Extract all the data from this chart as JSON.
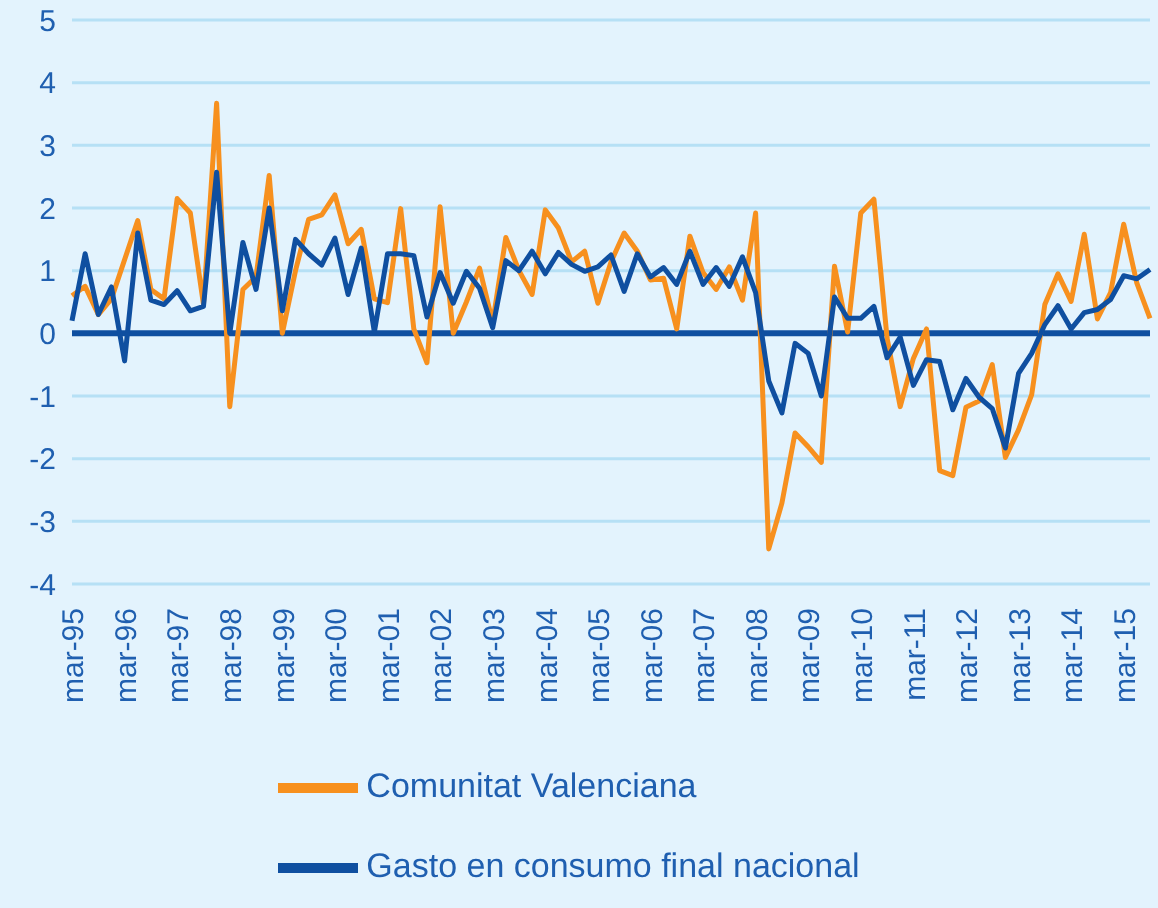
{
  "chart_data": {
    "type": "line",
    "categories": [
      "mar-95",
      null,
      null,
      null,
      "mar-96",
      null,
      null,
      null,
      "mar-97",
      null,
      null,
      null,
      "mar-98",
      null,
      null,
      null,
      "mar-99",
      null,
      null,
      null,
      "mar-00",
      null,
      null,
      null,
      "mar-01",
      null,
      null,
      null,
      "mar-02",
      null,
      null,
      null,
      "mar-03",
      null,
      null,
      null,
      "mar-04",
      null,
      null,
      null,
      "mar-05",
      null,
      null,
      null,
      "mar-06",
      null,
      null,
      null,
      "mar-07",
      null,
      null,
      null,
      "mar-08",
      null,
      null,
      null,
      "mar-09",
      null,
      null,
      null,
      "mar-10",
      null,
      null,
      null,
      "mar-11",
      null,
      null,
      null,
      "mar-12",
      null,
      null,
      null,
      "mar-13",
      null,
      null,
      null,
      "mar-14",
      null,
      null,
      null,
      "mar-15",
      null,
      null
    ],
    "series": [
      {
        "name": "Comunitat Valenciana",
        "color": "#f7901e",
        "values": [
          0.6,
          0.75,
          0.3,
          0.55,
          null,
          1.8,
          0.7,
          0.55,
          2.15,
          1.92,
          0.46,
          3.67,
          -1.17,
          0.7,
          0.9,
          2.52,
          0,
          1.0,
          1.82,
          1.89,
          2.21,
          1.43,
          1.66,
          0.55,
          0.49,
          1.99,
          0.07,
          -0.47,
          2.02,
          0,
          0.5,
          1.04,
          0.17,
          1.53,
          1.0,
          0.62,
          1.97,
          1.68,
          1.14,
          1.31,
          0.48,
          1.14,
          1.6,
          1.31,
          0.85,
          0.88,
          0.07,
          1.55,
          0.97,
          0.7,
          1.06,
          0.53,
          1.92,
          -3.44,
          -2.71,
          -1.59,
          -1.81,
          -2.06,
          1.07,
          0.02,
          1.92,
          2.14,
          -0.08,
          -1.17,
          -0.4,
          0.07,
          -2.19,
          -2.27,
          -1.18,
          -1.08,
          -0.5,
          -1.98,
          -1.54,
          -0.98,
          0.46,
          0.95,
          0.51,
          1.58,
          0.23,
          0.65,
          1.74,
          0.8,
          0.24
        ]
      },
      {
        "name": "Gasto en consumo final nacional",
        "color": "#0f4fa0",
        "values": [
          0.2,
          1.27,
          0.3,
          0.74,
          -0.44,
          1.6,
          0.53,
          0.46,
          0.68,
          0.36,
          0.43,
          2.57,
          0,
          1.45,
          0.7,
          2.0,
          0.36,
          1.5,
          1.27,
          1.09,
          1.52,
          0.62,
          1.36,
          0.02,
          1.27,
          1.27,
          1.24,
          0.26,
          0.97,
          0.48,
          0.99,
          0.72,
          0.09,
          1.16,
          1.0,
          1.31,
          0.95,
          1.29,
          1.1,
          0.99,
          1.06,
          1.25,
          0.67,
          1.27,
          0.9,
          1.05,
          0.78,
          1.31,
          0.78,
          1.05,
          0.75,
          1.22,
          0.65,
          -0.76,
          -1.27,
          -0.16,
          -0.32,
          -1.0,
          0.58,
          0.24,
          0.24,
          0.43,
          -0.39,
          -0.06,
          -0.83,
          -0.42,
          -0.45,
          -1.22,
          -0.72,
          -1.02,
          -1.2,
          -1.83,
          -0.64,
          -0.32,
          0.14,
          0.44,
          0.07,
          0.33,
          0.38,
          0.54,
          0.92,
          0.87,
          1.02
        ]
      }
    ],
    "ylim": [
      -4,
      5
    ],
    "yticks": [
      -4,
      -3,
      -2,
      -1,
      0,
      1,
      2,
      3,
      4,
      5
    ],
    "ref_lines": [
      {
        "axis": "y",
        "value": 0,
        "color": "#0f4fa0"
      }
    ],
    "grid": "y",
    "legend": "bottom",
    "marker": "none",
    "line_style": "solid"
  }
}
